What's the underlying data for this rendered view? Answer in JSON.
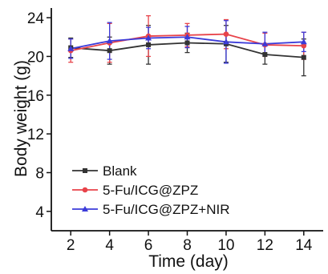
{
  "chart_data": {
    "type": "line",
    "title": "",
    "xlabel": "Time (day)",
    "ylabel": "Body weight (g)",
    "x": [
      2,
      4,
      6,
      8,
      10,
      12,
      14
    ],
    "xticks": [
      "2",
      "4",
      "6",
      "8",
      "10",
      "12",
      "14"
    ],
    "yticks": [
      "4",
      "8",
      "12",
      "16",
      "20",
      "24"
    ],
    "xlim": [
      1,
      15
    ],
    "ylim": [
      2,
      25
    ],
    "grid": false,
    "legend_position": "bottom-left",
    "series": [
      {
        "name": "Blank",
        "color": "#333333",
        "marker": "square",
        "values": [
          20.9,
          20.6,
          21.2,
          21.4,
          21.3,
          20.2,
          19.9
        ],
        "errors": [
          1.0,
          1.4,
          2.0,
          1.0,
          1.9,
          1.0,
          1.9
        ]
      },
      {
        "name": "5-Fu/ICG@ZPZ",
        "color": "#e8434a",
        "marker": "circle",
        "values": [
          20.6,
          21.4,
          22.1,
          22.2,
          22.3,
          21.2,
          21.1
        ],
        "errors": [
          1.2,
          2.0,
          2.1,
          1.2,
          1.5,
          1.2,
          1.4
        ]
      },
      {
        "name": "5-Fu/ICG@ZPZ+NIR",
        "color": "#3b3bd9",
        "marker": "triangle",
        "values": [
          20.8,
          21.6,
          21.9,
          22.0,
          21.5,
          21.3,
          21.5
        ],
        "errors": [
          1.0,
          1.9,
          1.1,
          1.1,
          2.2,
          1.2,
          1.0
        ]
      }
    ]
  }
}
